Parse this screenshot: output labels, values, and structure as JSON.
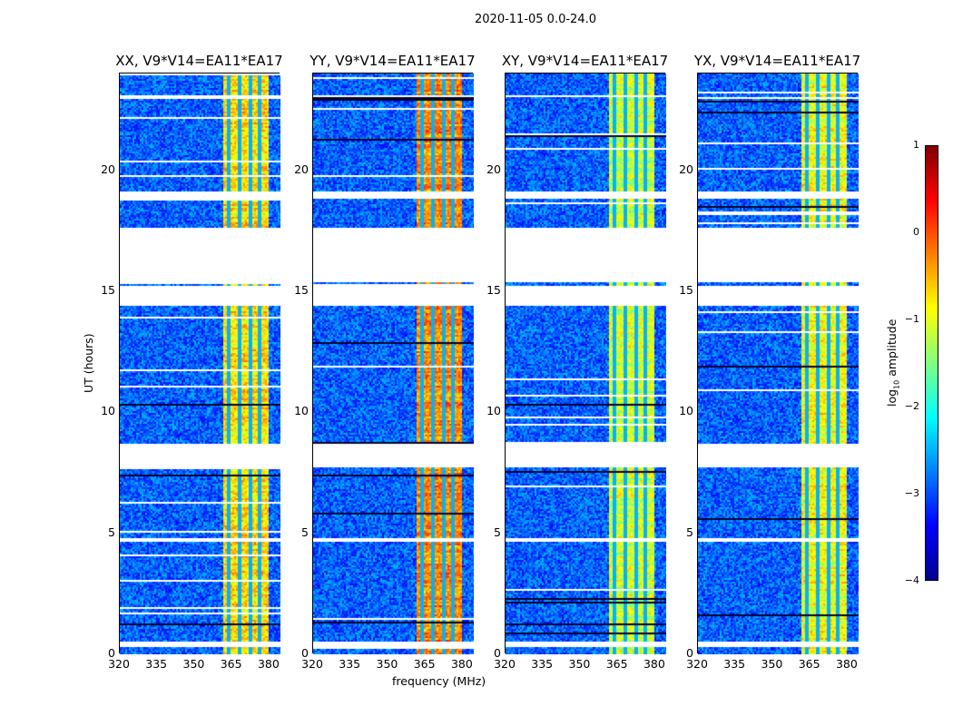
{
  "suptitle": "2020-11-05 0.0-24.0",
  "chart_data": {
    "type": "heatmap",
    "panels": [
      {
        "title": "XX, V9*V14=EA11*EA17",
        "band_intensity": -0.7
      },
      {
        "title": "YY, V9*V14=EA11*EA17",
        "band_intensity": -0.3
      },
      {
        "title": "XY, V9*V14=EA11*EA17",
        "band_intensity": -1.1
      },
      {
        "title": "YX, V9*V14=EA11*EA17",
        "band_intensity": -0.9
      }
    ],
    "xlabel": "frequency (MHz)",
    "ylabel": "UT (hours)",
    "xlim": [
      320,
      384.4
    ],
    "ylim": [
      0,
      24
    ],
    "xticks": [
      "320",
      "335",
      "350",
      "365",
      "380"
    ],
    "xtick_values": [
      320,
      335,
      350,
      365,
      380
    ],
    "yticks": [
      "0",
      "5",
      "10",
      "15",
      "20"
    ],
    "ytick_values": [
      0,
      5,
      10,
      15,
      20
    ],
    "background_log_amplitude": -2.9,
    "rfi_band_mhz": [
      361,
      379
    ],
    "flagged_hours": [
      [
        0.35,
        0.55
      ],
      [
        4.7,
        4.85
      ],
      [
        7.8,
        8.7
      ],
      [
        14.45,
        15.25
      ],
      [
        15.45,
        17.7
      ],
      [
        18.85,
        19.2
      ]
    ],
    "colorbar": {
      "label": "log10 amplitude",
      "label_main": "log",
      "label_sub": "10",
      "label_rest": " amplitude",
      "range": [
        -4,
        1
      ],
      "ticks": [
        "1",
        "0",
        "−1",
        "−2",
        "−3",
        "−4"
      ],
      "tick_values": [
        1,
        0,
        -1,
        -2,
        -3,
        -4
      ],
      "colormap": "jet"
    }
  }
}
